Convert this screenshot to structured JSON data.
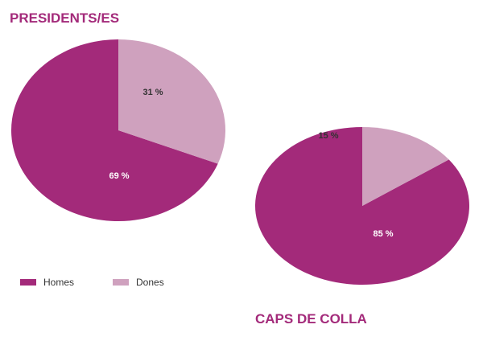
{
  "chart_data": [
    {
      "type": "pie",
      "title": "PRESIDENTS/ES",
      "slices": [
        {
          "name": "Homes",
          "value": 69,
          "label": "69 %",
          "color": "#a32a7a"
        },
        {
          "name": "Dones",
          "value": 31,
          "label": "31 %",
          "color": "#cfa1be"
        }
      ]
    },
    {
      "type": "pie",
      "title": "CAPS DE COLLA",
      "slices": [
        {
          "name": "Homes",
          "value": 85,
          "label": "85 %",
          "color": "#a32a7a"
        },
        {
          "name": "Dones",
          "value": 15,
          "label": "15 %",
          "color": "#cfa1be"
        }
      ]
    }
  ],
  "legend": [
    {
      "label": "Homes",
      "color": "#a32a7a"
    },
    {
      "label": "Dones",
      "color": "#cfa1be"
    }
  ]
}
